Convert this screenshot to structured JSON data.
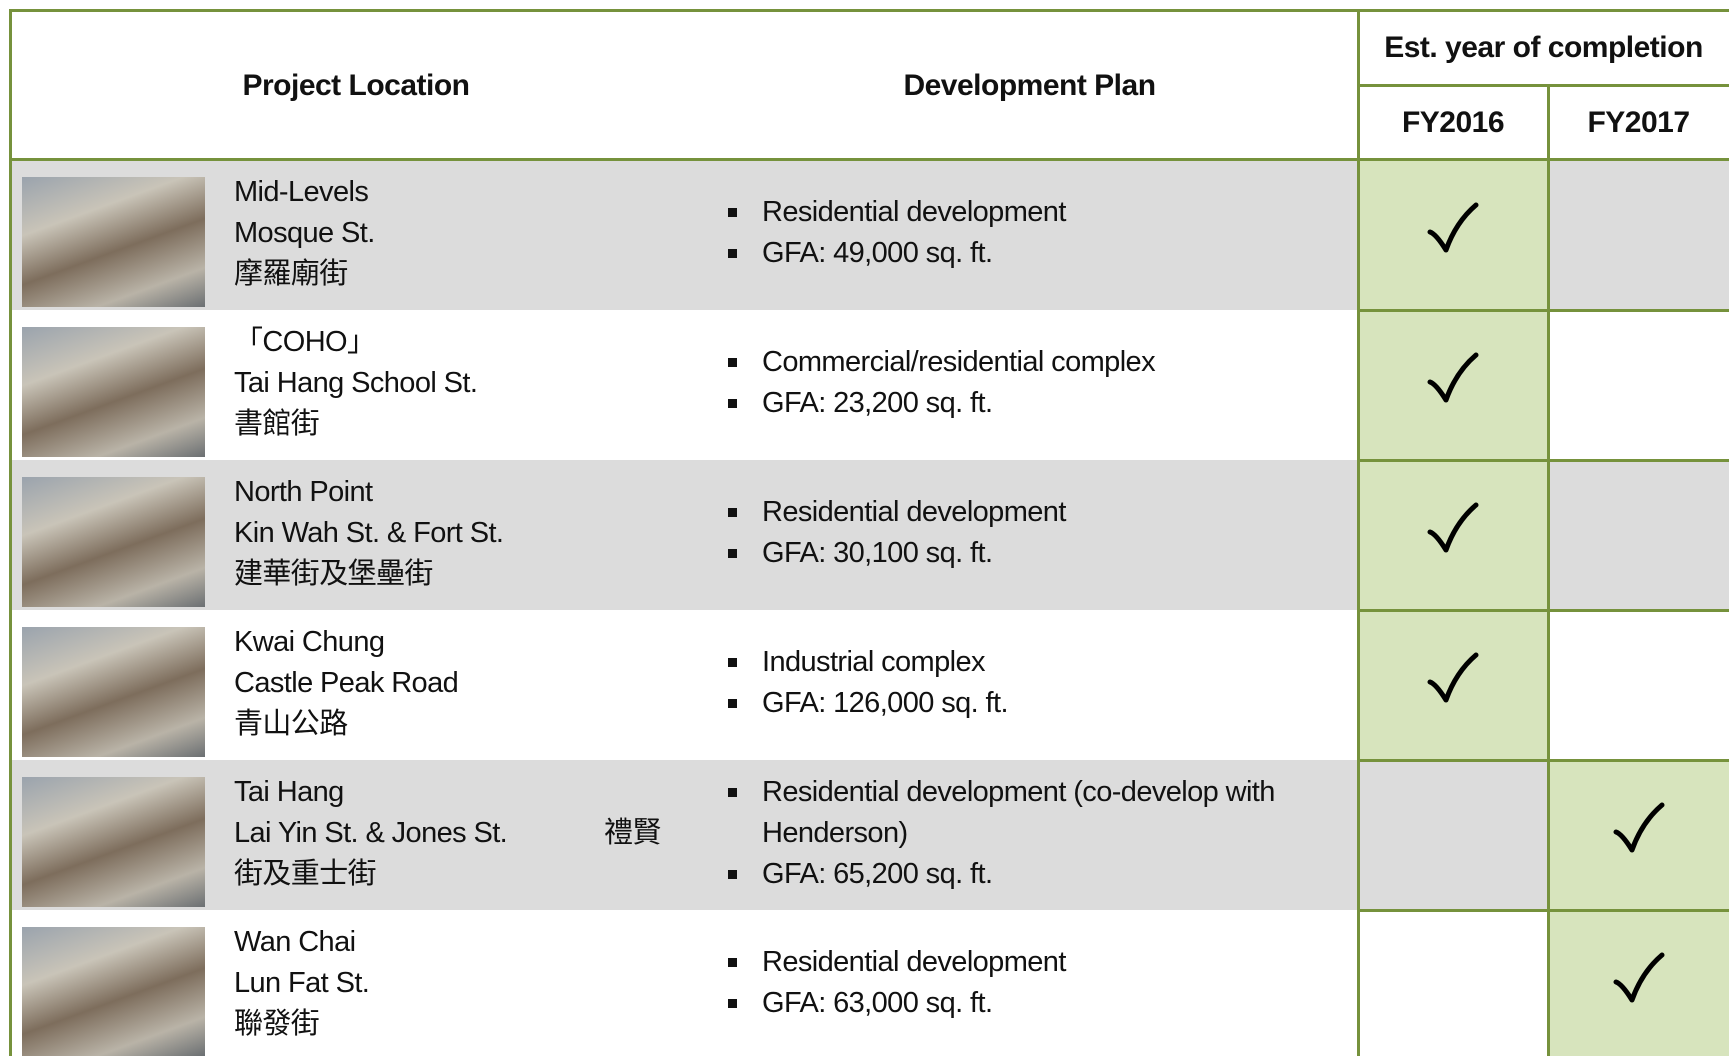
{
  "header": {
    "location": "Project Location",
    "plan": "Development Plan",
    "completion": "Est. year of completion",
    "years": [
      "FY2016",
      "FY2017"
    ]
  },
  "rows": [
    {
      "location": [
        "Mid-Levels",
        "Mosque St.",
        "摩羅廟街"
      ],
      "plan": [
        "Residential development",
        "GFA: 49,000 sq. ft."
      ],
      "completion": "FY2016"
    },
    {
      "location": [
        "「COHO」",
        "Tai Hang School St.",
        "書館街"
      ],
      "plan": [
        "Commercial/residential complex",
        "GFA: 23,200 sq. ft."
      ],
      "completion": "FY2016"
    },
    {
      "location": [
        "North Point",
        "Kin Wah St. & Fort St.",
        "建華街及堡壘街"
      ],
      "plan": [
        "Residential development",
        "GFA: 30,100 sq. ft."
      ],
      "completion": "FY2016"
    },
    {
      "location": [
        "Kwai Chung",
        "Castle Peak Road",
        "青山公路"
      ],
      "plan": [
        "Industrial complex",
        "GFA: 126,000 sq. ft."
      ],
      "completion": "FY2016"
    },
    {
      "location": [
        "Tai Hang",
        "Lai Yin St. & Jones St.",
        "街及重士街"
      ],
      "location_extra": "禮賢",
      "plan": [
        "Residential development (co-develop with Henderson)",
        "GFA: 65,200 sq. ft."
      ],
      "completion": "FY2017"
    },
    {
      "location": [
        "Wan Chai",
        "Lun Fat St.",
        "聯發街"
      ],
      "plan": [
        "Residential development",
        "GFA: 63,000 sq. ft."
      ],
      "completion": "FY2017"
    }
  ]
}
